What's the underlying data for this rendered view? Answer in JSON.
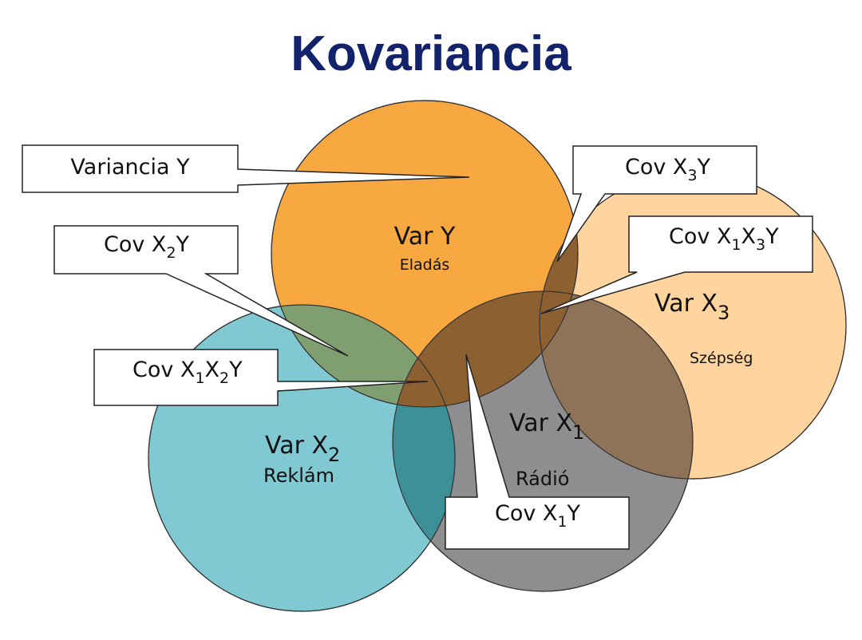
{
  "title": "Kovariancia",
  "colors": {
    "title": "#12236b",
    "var_y": "#f7a841",
    "var_x2": "#80c9d3",
    "var_x1": "#8e8d8f",
    "var_x3": "#ffd49f",
    "overlap_y_x2": "#7f9f71",
    "overlap_y_x1": "#8c6030",
    "overlap_x1_x3": "#8f7359",
    "overlap_x1_x2": "#3d9097"
  },
  "circles": {
    "var_y": {
      "label": "Var Y",
      "sublabel": "Eladás"
    },
    "var_x1": {
      "label_main": "Var X",
      "label_sub": "1",
      "sublabel": "Rádió"
    },
    "var_x2": {
      "label_main": "Var X",
      "label_sub": "2",
      "sublabel": "Reklám"
    },
    "var_x3": {
      "label_main": "Var X",
      "label_sub": "3",
      "sublabel": "Szépség"
    }
  },
  "callouts": {
    "variancia_y": {
      "text": "Variancia Y"
    },
    "cov_x3y": {
      "t1": "Cov X",
      "s1": "3",
      "t2": "Y"
    },
    "cov_x2y": {
      "t1": "Cov X",
      "s1": "2",
      "t2": "Y"
    },
    "cov_x1x3y": {
      "t1": "Cov X",
      "s1": "1",
      "t2": "X",
      "s2": "3",
      "t3": "Y"
    },
    "cov_x1x2y": {
      "t1": "Cov X",
      "s1": "1",
      "t2": "X",
      "s2": "2",
      "t3": "Y"
    },
    "cov_x1y": {
      "t1": "Cov X",
      "s1": "1",
      "t2": "Y"
    }
  }
}
